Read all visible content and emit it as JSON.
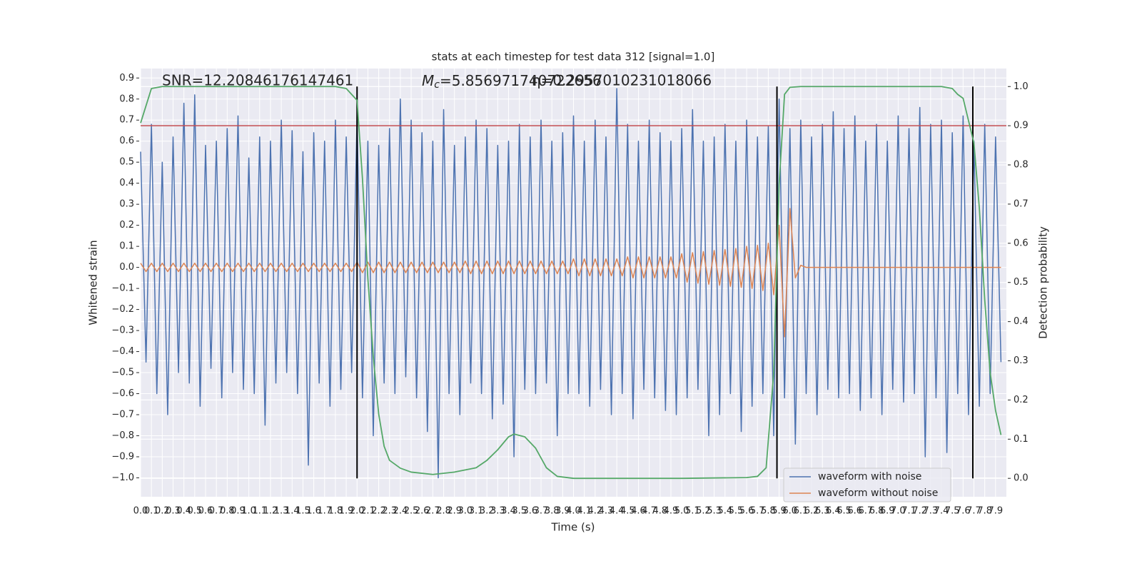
{
  "chart_data": {
    "type": "line",
    "title": "stats at each timestep for test data 312 [signal=1.0]",
    "xlabel": "Time (s)",
    "ylabel": "Whitened strain",
    "y2label": "Detection probability",
    "annotations": {
      "snr": "SNR=12.20846176147461",
      "mc_symbol": "M",
      "mc_subscript": "c",
      "mc_value": "=5.856971740722656",
      "other": "η=0.2957010231018066"
    },
    "grid": true,
    "legend": "lower right",
    "xlim": [
      0,
      8
    ],
    "ylim": [
      -1.09,
      0.945
    ],
    "y2lim": [
      -0.047,
      1.046
    ],
    "xticks": [
      {
        "value": 0,
        "label": "0.0"
      },
      0.1,
      0.2,
      0.3,
      0.4,
      0.5,
      0.6,
      0.7,
      0.8,
      0.9,
      {
        "value": 1,
        "label": "1.0"
      },
      1.1,
      1.2,
      1.3,
      1.4,
      1.5,
      1.6,
      1.7,
      1.8,
      1.9,
      {
        "value": 2,
        "label": "2.0"
      },
      2.1,
      2.2,
      2.3,
      2.4,
      2.5,
      2.6,
      2.7,
      2.8,
      2.9,
      {
        "value": 3,
        "label": "3.0"
      },
      3.1,
      3.2,
      3.3,
      3.4,
      3.5,
      3.6,
      3.7,
      3.8,
      3.9,
      {
        "value": 4,
        "label": "4.0"
      },
      4.1,
      4.2,
      4.3,
      4.4,
      4.5,
      4.6,
      4.7,
      4.8,
      4.9,
      {
        "value": 5,
        "label": "5.0"
      },
      5.1,
      5.2,
      5.3,
      5.4,
      5.5,
      5.6,
      5.7,
      5.8,
      5.9,
      {
        "value": 6,
        "label": "6.0"
      },
      6.1,
      6.2,
      6.3,
      6.4,
      6.5,
      6.6,
      6.7,
      6.8,
      6.9,
      {
        "value": 7,
        "label": "7.0"
      },
      7.1,
      7.2,
      7.3,
      7.4,
      7.5,
      7.6,
      7.7,
      7.8,
      7.9
    ],
    "yticks": [
      {
        "value": -1,
        "label": "−1.0"
      },
      {
        "value": -0.9,
        "label": "−0.9"
      },
      {
        "value": -0.8,
        "label": "−0.8"
      },
      {
        "value": -0.7,
        "label": "−0.7"
      },
      {
        "value": -0.6,
        "label": "−0.6"
      },
      {
        "value": -0.5,
        "label": "−0.5"
      },
      {
        "value": -0.4,
        "label": "−0.4"
      },
      {
        "value": -0.3,
        "label": "−0.3"
      },
      {
        "value": -0.2,
        "label": "−0.2"
      },
      {
        "value": -0.1,
        "label": "−0.1"
      },
      {
        "value": 0,
        "label": "0.0"
      },
      0.1,
      0.2,
      0.3,
      0.4,
      0.5,
      0.6,
      0.7,
      0.8,
      0.9
    ],
    "y2ticks": [
      {
        "value": 0,
        "label": "0.0"
      },
      0.1,
      0.2,
      0.3,
      0.4,
      0.5,
      0.6,
      0.7,
      0.8,
      0.9,
      {
        "value": 1,
        "label": "1.0"
      }
    ],
    "x": [
      0,
      0.05,
      0.1,
      0.15,
      0.2,
      0.25,
      0.3,
      0.35,
      0.4,
      0.45,
      0.5,
      0.55,
      0.6,
      0.65,
      0.7,
      0.75,
      0.8,
      0.85,
      0.9,
      0.95,
      1,
      1.05,
      1.1,
      1.15,
      1.2,
      1.25,
      1.3,
      1.35,
      1.4,
      1.45,
      1.5,
      1.55,
      1.6,
      1.65,
      1.7,
      1.75,
      1.8,
      1.85,
      1.9,
      1.95,
      2,
      2.05,
      2.1,
      2.15,
      2.2,
      2.25,
      2.3,
      2.35,
      2.4,
      2.45,
      2.5,
      2.55,
      2.6,
      2.65,
      2.7,
      2.75,
      2.8,
      2.85,
      2.9,
      2.95,
      3,
      3.05,
      3.1,
      3.15,
      3.2,
      3.25,
      3.3,
      3.35,
      3.4,
      3.45,
      3.5,
      3.55,
      3.6,
      3.65,
      3.7,
      3.75,
      3.8,
      3.85,
      3.9,
      3.95,
      4,
      4.05,
      4.1,
      4.15,
      4.2,
      4.25,
      4.3,
      4.35,
      4.4,
      4.45,
      4.5,
      4.55,
      4.6,
      4.65,
      4.7,
      4.75,
      4.8,
      4.85,
      4.9,
      4.95,
      5,
      5.05,
      5.1,
      5.15,
      5.2,
      5.25,
      5.3,
      5.35,
      5.4,
      5.45,
      5.5,
      5.55,
      5.6,
      5.65,
      5.7,
      5.75,
      5.8,
      5.85,
      5.9,
      5.95,
      6,
      6.05,
      6.1,
      6.15,
      6.2,
      6.25,
      6.3,
      6.35,
      6.4,
      6.45,
      6.5,
      6.55,
      6.6,
      6.65,
      6.7,
      6.75,
      6.8,
      6.85,
      6.9,
      6.95,
      7,
      7.05,
      7.1,
      7.15,
      7.2,
      7.25,
      7.3,
      7.35,
      7.4,
      7.45,
      7.5,
      7.55,
      7.6,
      7.65,
      7.7,
      7.75,
      7.8,
      7.85,
      7.9,
      7.95
    ],
    "series": [
      {
        "name": "waveform with noise",
        "color": "#4c72b0",
        "values": [
          0.55,
          -0.45,
          0.68,
          -0.6,
          0.5,
          -0.7,
          0.62,
          -0.5,
          0.78,
          -0.55,
          0.82,
          -0.66,
          0.58,
          -0.48,
          0.6,
          -0.62,
          0.66,
          -0.5,
          0.72,
          -0.58,
          0.52,
          -0.6,
          0.62,
          -0.75,
          0.6,
          -0.55,
          0.7,
          -0.5,
          0.65,
          -0.6,
          0.55,
          -0.94,
          0.64,
          -0.55,
          0.6,
          -0.66,
          0.7,
          -0.58,
          0.62,
          -0.5,
          0.72,
          -0.62,
          0.6,
          -0.8,
          0.58,
          -0.55,
          0.66,
          -0.6,
          0.8,
          -0.52,
          0.7,
          -0.62,
          0.64,
          -0.78,
          0.6,
          -1.0,
          0.75,
          -0.6,
          0.58,
          -0.7,
          0.62,
          -0.55,
          0.7,
          -0.6,
          0.66,
          -0.72,
          0.58,
          -0.65,
          0.6,
          -0.9,
          0.68,
          -0.58,
          0.62,
          -0.6,
          0.7,
          -0.55,
          0.6,
          -0.8,
          0.64,
          -0.6,
          0.72,
          -0.6,
          0.6,
          -0.66,
          0.7,
          -0.58,
          0.62,
          -0.7,
          0.85,
          -0.6,
          0.68,
          -0.72,
          0.6,
          -0.58,
          0.7,
          -0.62,
          0.64,
          -0.68,
          0.6,
          -0.7,
          0.66,
          -0.62,
          0.75,
          -0.58,
          0.6,
          -0.8,
          0.62,
          -0.7,
          0.68,
          -0.6,
          0.6,
          -0.78,
          0.7,
          -0.66,
          0.62,
          -0.6,
          0.67,
          -0.8,
          0.8,
          -0.62,
          0.66,
          -0.84,
          0.7,
          -0.6,
          0.62,
          -0.7,
          0.68,
          -0.58,
          0.74,
          -0.62,
          0.66,
          -0.6,
          0.72,
          -0.68,
          0.6,
          -0.62,
          0.68,
          -0.7,
          0.6,
          -0.58,
          0.72,
          -0.64,
          0.66,
          -0.6,
          0.76,
          -0.9,
          0.68,
          -0.62,
          0.7,
          -0.88,
          0.64,
          -0.6,
          0.72,
          -0.7,
          0.6,
          -0.66,
          0.68,
          -0.6,
          0.62,
          -0.45
        ]
      },
      {
        "name": "waveform without noise",
        "color": "#dd8452",
        "values": [
          0.02,
          -0.02,
          0.02,
          -0.02,
          0.02,
          -0.02,
          0.02,
          -0.02,
          0.02,
          -0.02,
          0.02,
          -0.02,
          0.02,
          -0.02,
          0.02,
          -0.02,
          0.02,
          -0.02,
          0.02,
          -0.02,
          0.02,
          -0.02,
          0.02,
          -0.02,
          0.02,
          -0.02,
          0.02,
          -0.02,
          0.02,
          -0.02,
          0.02,
          -0.02,
          0.02,
          -0.02,
          0.02,
          -0.02,
          0.02,
          -0.02,
          0.02,
          -0.02,
          0.025,
          -0.025,
          0.025,
          -0.025,
          0.025,
          -0.025,
          0.025,
          -0.025,
          0.025,
          -0.025,
          0.025,
          -0.025,
          0.025,
          -0.025,
          0.025,
          -0.025,
          0.025,
          -0.025,
          0.025,
          -0.025,
          0.03,
          -0.03,
          0.03,
          -0.03,
          0.03,
          -0.03,
          0.03,
          -0.03,
          0.03,
          -0.03,
          0.03,
          -0.03,
          0.03,
          -0.03,
          0.03,
          -0.03,
          0.03,
          -0.03,
          0.03,
          -0.03,
          0.04,
          -0.04,
          0.04,
          -0.04,
          0.04,
          -0.04,
          0.04,
          -0.04,
          0.04,
          -0.04,
          0.05,
          -0.05,
          0.05,
          -0.05,
          0.05,
          -0.05,
          0.05,
          -0.05,
          0.05,
          -0.05,
          0.065,
          -0.07,
          0.07,
          -0.075,
          0.075,
          -0.08,
          0.08,
          -0.085,
          0.085,
          -0.09,
          0.09,
          -0.095,
          0.1,
          -0.1,
          0.105,
          -0.11,
          0.115,
          -0.13,
          0.2,
          -0.33,
          0.28,
          -0.05,
          0.01,
          0,
          0,
          0,
          0,
          0,
          0,
          0,
          0,
          0,
          0,
          0,
          0,
          0,
          0,
          0,
          0,
          0,
          0,
          0,
          0,
          0,
          0,
          0,
          0,
          0,
          0,
          0,
          0,
          0,
          0,
          0,
          0,
          0,
          0,
          0,
          0,
          0
        ]
      }
    ],
    "probability": {
      "color": "#55a868",
      "axis": "y2",
      "x": [
        0,
        0.1,
        0.2,
        1.8,
        1.9,
        1.95,
        2.0,
        2.05,
        2.1,
        2.15,
        2.2,
        2.25,
        2.3,
        2.4,
        2.5,
        2.7,
        2.9,
        3.1,
        3.2,
        3.3,
        3.4,
        3.45,
        3.55,
        3.65,
        3.75,
        3.85,
        4.0,
        5.0,
        5.6,
        5.7,
        5.78,
        5.85,
        5.9,
        5.95,
        6.0,
        6.1,
        7.4,
        7.5,
        7.55,
        7.6,
        7.7,
        7.75,
        7.8,
        7.85,
        7.9,
        7.95
      ],
      "values": [
        0.907,
        0.995,
        1.0,
        1.0,
        0.995,
        0.98,
        0.965,
        0.765,
        0.51,
        0.31,
        0.164,
        0.082,
        0.046,
        0.026,
        0.016,
        0.01,
        0.016,
        0.027,
        0.046,
        0.073,
        0.106,
        0.113,
        0.106,
        0.077,
        0.027,
        0.005,
        0.0,
        0.0,
        0.002,
        0.005,
        0.027,
        0.27,
        0.75,
        0.98,
        0.998,
        1.0,
        1.0,
        0.995,
        0.98,
        0.97,
        0.856,
        0.69,
        0.455,
        0.27,
        0.173,
        0.111
      ]
    },
    "threshold": {
      "value": 0.9,
      "color": "#c44e52",
      "axis": "y2"
    },
    "vlines": {
      "x": [
        2.0,
        5.88,
        7.69
      ],
      "ymin": 0,
      "ymax": 1,
      "color": "#000000",
      "axis": "y2"
    }
  }
}
